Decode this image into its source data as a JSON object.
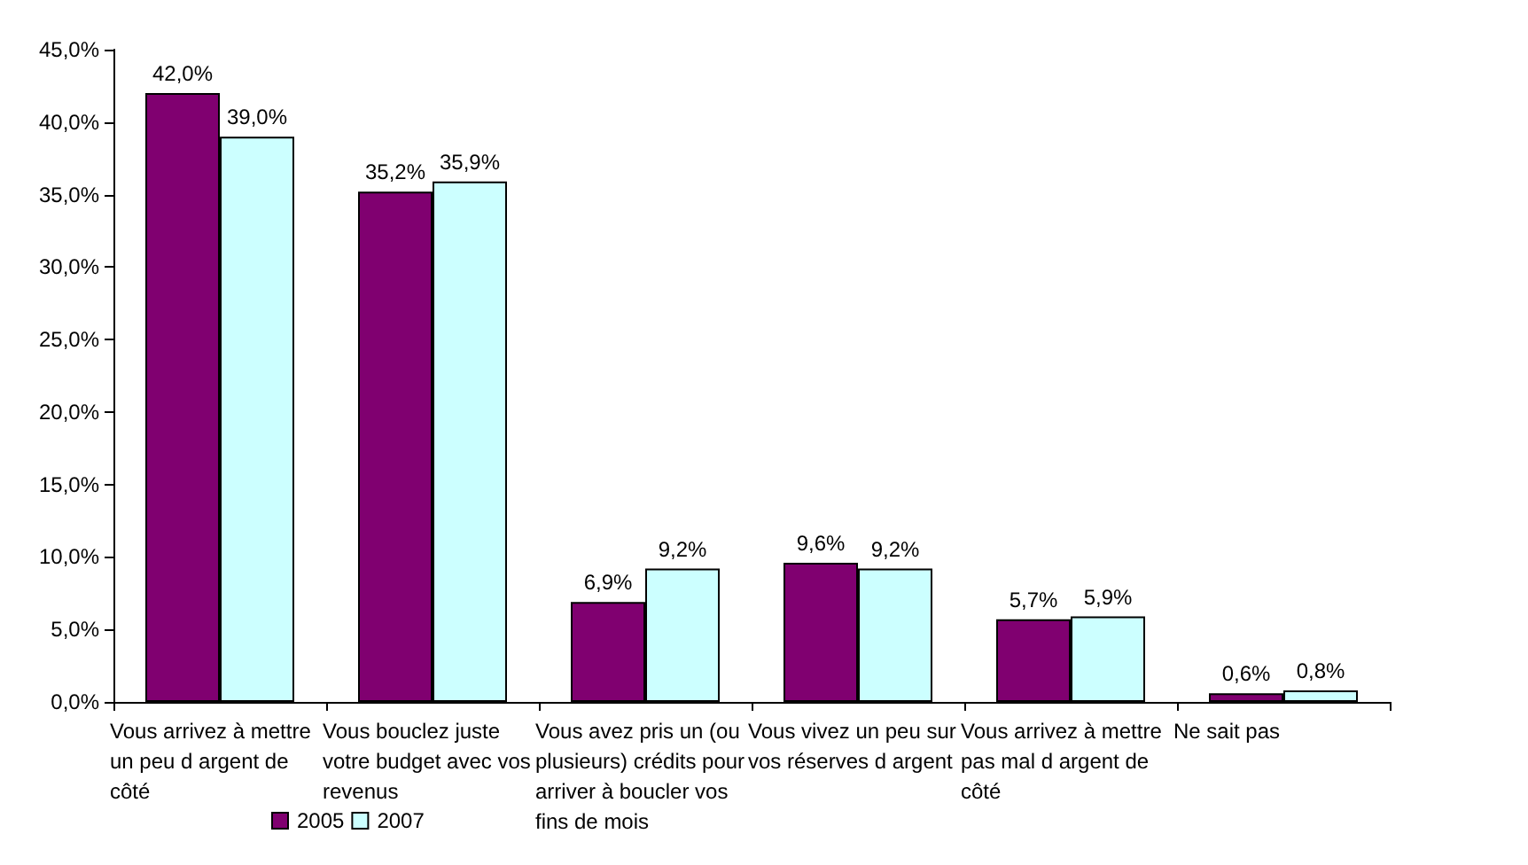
{
  "chart_data": {
    "type": "bar",
    "categories": [
      "Vous arrivez à mettre un peu d argent de côté",
      "Vous bouclez juste votre budget avec vos revenus",
      "Vous avez pris un (ou plusieurs) crédits pour arriver à boucler vos fins de mois",
      "Vous vivez un peu sur vos réserves d argent",
      "Vous arrivez à mettre pas mal d argent de côté",
      "Ne sait pas"
    ],
    "series": [
      {
        "name": "2005",
        "color": "#800070",
        "values": [
          42.0,
          35.2,
          6.9,
          9.6,
          5.7,
          0.6
        ],
        "value_labels": [
          "42,0%",
          "35,2%",
          "6,9%",
          "9,6%",
          "5,7%",
          "0,6%"
        ]
      },
      {
        "name": "2007",
        "color": "#ccffff",
        "values": [
          39.0,
          35.9,
          9.2,
          9.2,
          5.9,
          0.8
        ],
        "value_labels": [
          "39,0%",
          "35,9%",
          "9,2%",
          "9,2%",
          "5,9%",
          "0,8%"
        ]
      }
    ],
    "ylim": [
      0,
      45
    ],
    "yticks": [
      {
        "value": 0,
        "label": "0,0%"
      },
      {
        "value": 5,
        "label": "5,0%"
      },
      {
        "value": 10,
        "label": "10,0%"
      },
      {
        "value": 15,
        "label": "15,0%"
      },
      {
        "value": 20,
        "label": "20,0%"
      },
      {
        "value": 25,
        "label": "25,0%"
      },
      {
        "value": 30,
        "label": "30,0%"
      },
      {
        "value": 35,
        "label": "35,0%"
      },
      {
        "value": 40,
        "label": "40,0%"
      },
      {
        "value": 45,
        "label": "45,0%"
      }
    ],
    "grid": false,
    "legend": "bottom left"
  }
}
